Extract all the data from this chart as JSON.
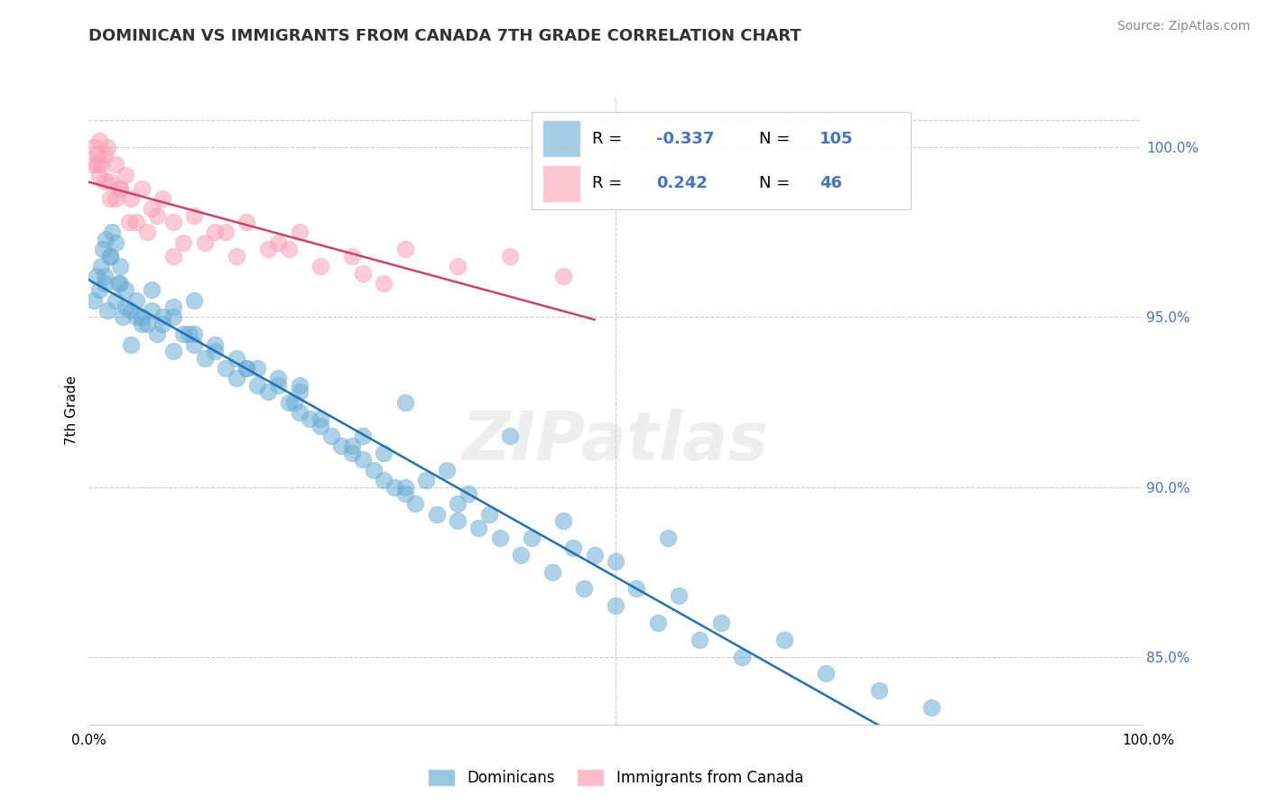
{
  "title": "DOMINICAN VS IMMIGRANTS FROM CANADA 7TH GRADE CORRELATION CHART",
  "source_text": "Source: ZipAtlas.com",
  "ylabel": "7th Grade",
  "legend_labels": [
    "Dominicans",
    "Immigrants from Canada"
  ],
  "legend_R": [
    -0.337,
    0.242
  ],
  "legend_N": [
    105,
    46
  ],
  "blue_color": "#6baed6",
  "pink_color": "#fa9fb5",
  "blue_line_color": "#2171b5",
  "pink_line_color": "#c9446a",
  "dashed_line_color": "#aaaaaa",
  "watermark": "ZIPatlas",
  "xmin": 0.0,
  "xmax": 100.0,
  "ymin": 83.0,
  "ymax": 101.5,
  "right_yticks": [
    85.0,
    90.0,
    95.0,
    100.0
  ],
  "blue_scatter_x": [
    0.5,
    0.7,
    1.0,
    1.2,
    1.3,
    1.5,
    1.6,
    1.8,
    2.0,
    2.2,
    2.5,
    2.8,
    3.0,
    3.2,
    3.5,
    4.0,
    4.5,
    5.0,
    5.5,
    6.0,
    6.5,
    7.0,
    8.0,
    9.0,
    10.0,
    11.0,
    12.0,
    13.0,
    14.0,
    15.0,
    16.0,
    17.0,
    18.0,
    19.0,
    20.0,
    21.0,
    22.0,
    23.0,
    24.0,
    25.0,
    26.0,
    27.0,
    28.0,
    29.0,
    30.0,
    31.0,
    33.0,
    35.0,
    37.0,
    39.0,
    41.0,
    44.0,
    47.0,
    50.0,
    54.0,
    58.0,
    62.0,
    66.0,
    70.0,
    75.0,
    80.0,
    30.0,
    8.0,
    4.0,
    2.0,
    1.5,
    3.5,
    10.0,
    20.0,
    40.0,
    55.0,
    30.0,
    10.0,
    5.0,
    2.5,
    7.0,
    15.0,
    25.0,
    35.0,
    45.0,
    20.0,
    12.0,
    6.0,
    3.0,
    18.0,
    28.0,
    38.0,
    50.0,
    60.0,
    8.0,
    14.0,
    22.0,
    32.0,
    42.0,
    52.0,
    16.0,
    26.0,
    36.0,
    46.0,
    56.0,
    4.5,
    9.5,
    19.5,
    34.0,
    48.0
  ],
  "blue_scatter_y": [
    95.5,
    96.2,
    95.8,
    96.5,
    97.0,
    96.0,
    97.3,
    95.2,
    96.8,
    97.5,
    95.5,
    96.0,
    96.5,
    95.0,
    95.8,
    95.2,
    95.5,
    95.0,
    94.8,
    95.2,
    94.5,
    94.8,
    95.0,
    94.5,
    94.2,
    93.8,
    94.0,
    93.5,
    93.2,
    93.5,
    93.0,
    92.8,
    93.0,
    92.5,
    92.2,
    92.0,
    91.8,
    91.5,
    91.2,
    91.0,
    90.8,
    90.5,
    90.2,
    90.0,
    89.8,
    89.5,
    89.2,
    89.0,
    88.8,
    88.5,
    88.0,
    87.5,
    87.0,
    86.5,
    86.0,
    85.5,
    85.0,
    85.5,
    84.5,
    84.0,
    83.5,
    92.5,
    94.0,
    94.2,
    96.8,
    96.2,
    95.3,
    95.5,
    93.0,
    91.5,
    88.5,
    90.0,
    94.5,
    94.8,
    97.2,
    95.0,
    93.5,
    91.2,
    89.5,
    89.0,
    92.8,
    94.2,
    95.8,
    96.0,
    93.2,
    91.0,
    89.2,
    87.8,
    86.0,
    95.3,
    93.8,
    92.0,
    90.2,
    88.5,
    87.0,
    93.5,
    91.5,
    89.8,
    88.2,
    86.8,
    95.0,
    94.5,
    92.5,
    90.5,
    88.0
  ],
  "pink_scatter_x": [
    0.3,
    0.5,
    0.8,
    1.0,
    1.2,
    1.5,
    1.8,
    2.0,
    2.5,
    3.0,
    3.5,
    4.0,
    5.0,
    6.0,
    7.0,
    8.0,
    10.0,
    12.0,
    15.0,
    18.0,
    20.0,
    25.0,
    30.0,
    35.0,
    40.0,
    45.0,
    1.0,
    2.0,
    3.0,
    4.5,
    6.5,
    9.0,
    13.0,
    17.0,
    22.0,
    28.0,
    0.8,
    1.5,
    2.5,
    3.8,
    5.5,
    8.0,
    11.0,
    14.0,
    19.0,
    26.0
  ],
  "pink_scatter_y": [
    99.5,
    100.0,
    99.8,
    100.2,
    99.5,
    99.8,
    100.0,
    99.0,
    99.5,
    98.8,
    99.2,
    98.5,
    98.8,
    98.2,
    98.5,
    97.8,
    98.0,
    97.5,
    97.8,
    97.2,
    97.5,
    96.8,
    97.0,
    96.5,
    96.8,
    96.2,
    99.2,
    98.5,
    98.8,
    97.8,
    98.0,
    97.2,
    97.5,
    97.0,
    96.5,
    96.0,
    99.5,
    99.0,
    98.5,
    97.8,
    97.5,
    96.8,
    97.2,
    96.8,
    97.0,
    96.3
  ]
}
